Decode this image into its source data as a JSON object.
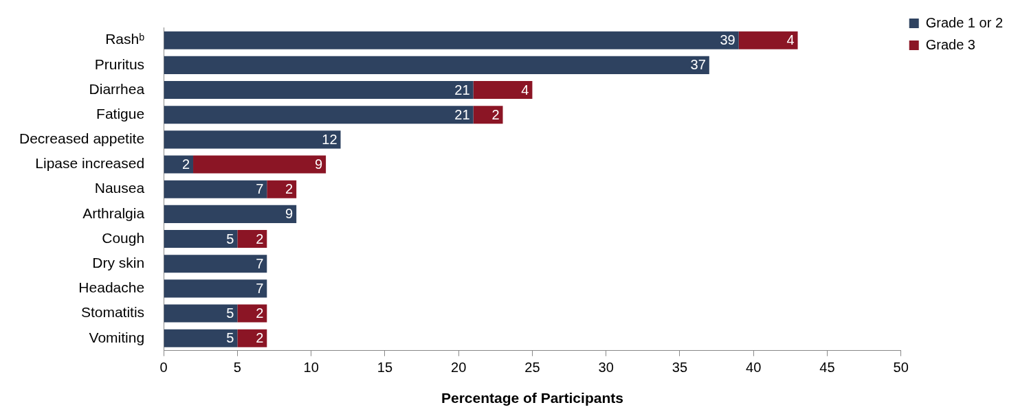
{
  "chart_data": {
    "type": "bar",
    "orientation": "horizontal",
    "stacked": true,
    "categories": [
      "Rashᵇ",
      "Pruritus",
      "Diarrhea",
      "Fatigue",
      "Decreased appetite",
      "Lipase increased",
      "Nausea",
      "Arthralgia",
      "Cough",
      "Dry skin",
      "Headache",
      "Stomatitis",
      "Vomiting"
    ],
    "series": [
      {
        "name": "Grade 1 or 2",
        "color": "#2e4260",
        "values": [
          39,
          37,
          21,
          21,
          12,
          2,
          7,
          9,
          5,
          7,
          7,
          5,
          5
        ]
      },
      {
        "name": "Grade 3",
        "color": "#8b1525",
        "values": [
          4,
          null,
          4,
          2,
          null,
          9,
          2,
          null,
          2,
          null,
          null,
          2,
          2
        ]
      }
    ],
    "xlabel": "Percentage of Participants",
    "xlim": [
      0,
      50
    ],
    "xticks": [
      0,
      5,
      10,
      15,
      20,
      25,
      30,
      35,
      40,
      45,
      50
    ],
    "data_labels": true,
    "legend": "top right",
    "grid": false
  }
}
